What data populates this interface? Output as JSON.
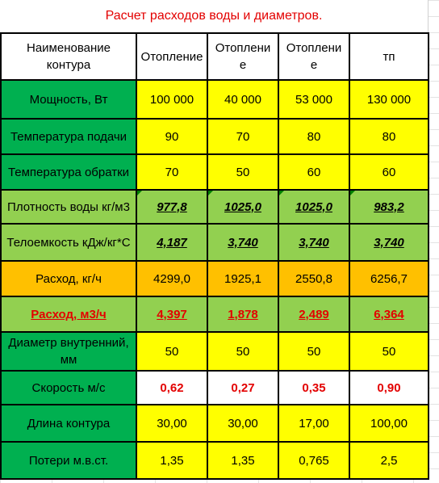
{
  "title": "Расчет расходов воды и диаметров.",
  "header": {
    "label": "Наименование контура",
    "columns": [
      "Отопление",
      "Отоплени е",
      "Отоплени е",
      "тп"
    ]
  },
  "rows": [
    {
      "label": "Мощность, Вт",
      "values": [
        "100 000",
        "40 000",
        "53 000",
        "130 000"
      ]
    },
    {
      "label": "Температура подачи",
      "values": [
        "90",
        "70",
        "80",
        "80"
      ]
    },
    {
      "label": "Температура обратки",
      "values": [
        "70",
        "50",
        "60",
        "60"
      ]
    },
    {
      "label": "Плотность воды кг/м3",
      "values": [
        "977,8",
        "1025,0",
        "1025,0",
        "983,2"
      ]
    },
    {
      "label": "Телоемкость кДж/кг*С",
      "values": [
        "4,187",
        "3,740",
        "3,740",
        "3,740"
      ]
    },
    {
      "label": "Расход, кг/ч",
      "values": [
        "4299,0",
        "1925,1",
        "2550,8",
        "6256,7"
      ]
    },
    {
      "label": "Расход, м3/ч",
      "values": [
        "4,397",
        "1,878",
        "2,489",
        "6,364"
      ]
    },
    {
      "label": "Диаметр внутренний, мм",
      "values": [
        "50",
        "50",
        "50",
        "50"
      ]
    },
    {
      "label": "Скорость м/с",
      "values": [
        "0,62",
        "0,27",
        "0,35",
        "0,90"
      ]
    },
    {
      "label": "Длина контура",
      "values": [
        "30,00",
        "30,00",
        "17,00",
        "100,00"
      ]
    },
    {
      "label": "Потери м.в.ст.",
      "values": [
        "1,35",
        "1,35",
        "0,765",
        "2,5"
      ]
    }
  ],
  "colors": {
    "title_red": "#e30000",
    "label_green": "#00b050",
    "label_lime": "#92d050",
    "orange": "#ffc000",
    "yellow": "#ffff00"
  }
}
